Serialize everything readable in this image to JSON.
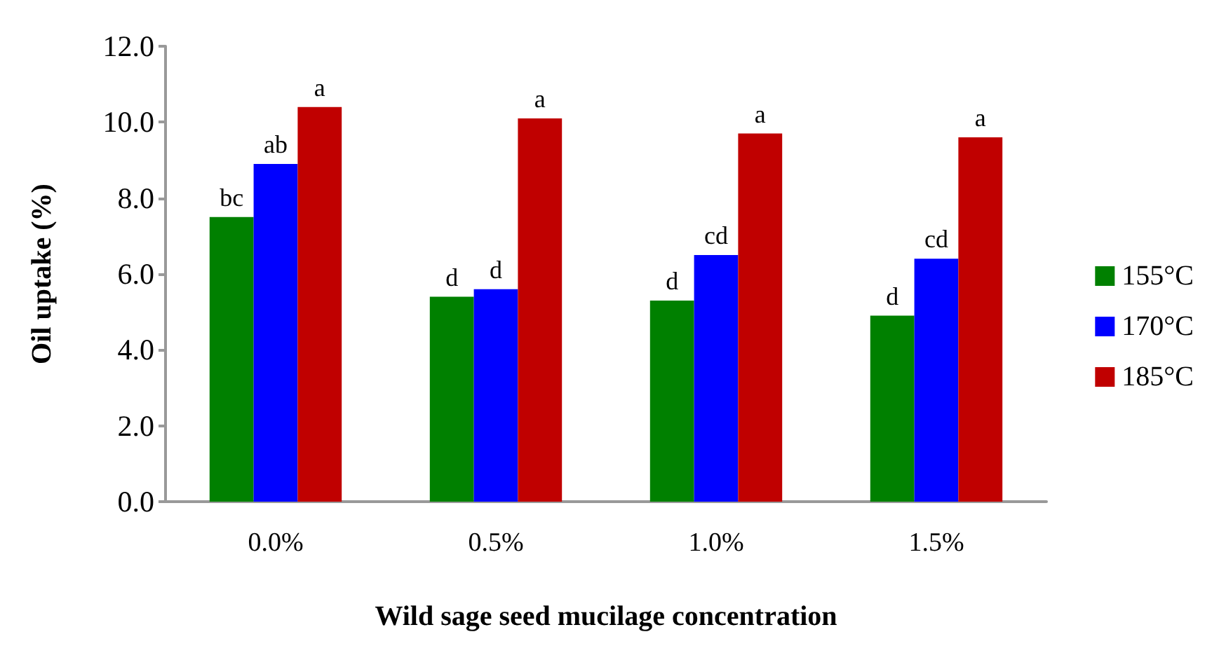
{
  "chart_data": {
    "type": "bar",
    "xlabel": "Wild sage seed mucilage concentration",
    "ylabel": "Oil uptake (%)",
    "categories": [
      "0.0%",
      "0.5%",
      "1.0%",
      "1.5%"
    ],
    "series": [
      {
        "name": "155°C",
        "color": "#008000",
        "values": [
          7.5,
          5.4,
          5.3,
          4.9
        ],
        "value_labels": [
          "bc",
          "d",
          "d",
          "d"
        ]
      },
      {
        "name": "170°C",
        "color": "#0000ff",
        "values": [
          8.9,
          5.6,
          6.5,
          6.4
        ],
        "value_labels": [
          "ab",
          "d",
          "cd",
          "cd"
        ]
      },
      {
        "name": "185°C",
        "color": "#c00000",
        "values": [
          10.4,
          10.1,
          9.7,
          9.6
        ],
        "value_labels": [
          "a",
          "a",
          "a",
          "a"
        ]
      }
    ],
    "ylim": [
      0,
      12
    ],
    "yticks": [
      {
        "value": 0,
        "label": "0.0"
      },
      {
        "value": 2,
        "label": "2.0"
      },
      {
        "value": 4,
        "label": "4.0"
      },
      {
        "value": 6,
        "label": "6.0"
      },
      {
        "value": 8,
        "label": "8.0"
      },
      {
        "value": 10,
        "label": "10.0"
      },
      {
        "value": 12,
        "label": "12.0"
      }
    ],
    "grid": false,
    "legend": "right"
  }
}
